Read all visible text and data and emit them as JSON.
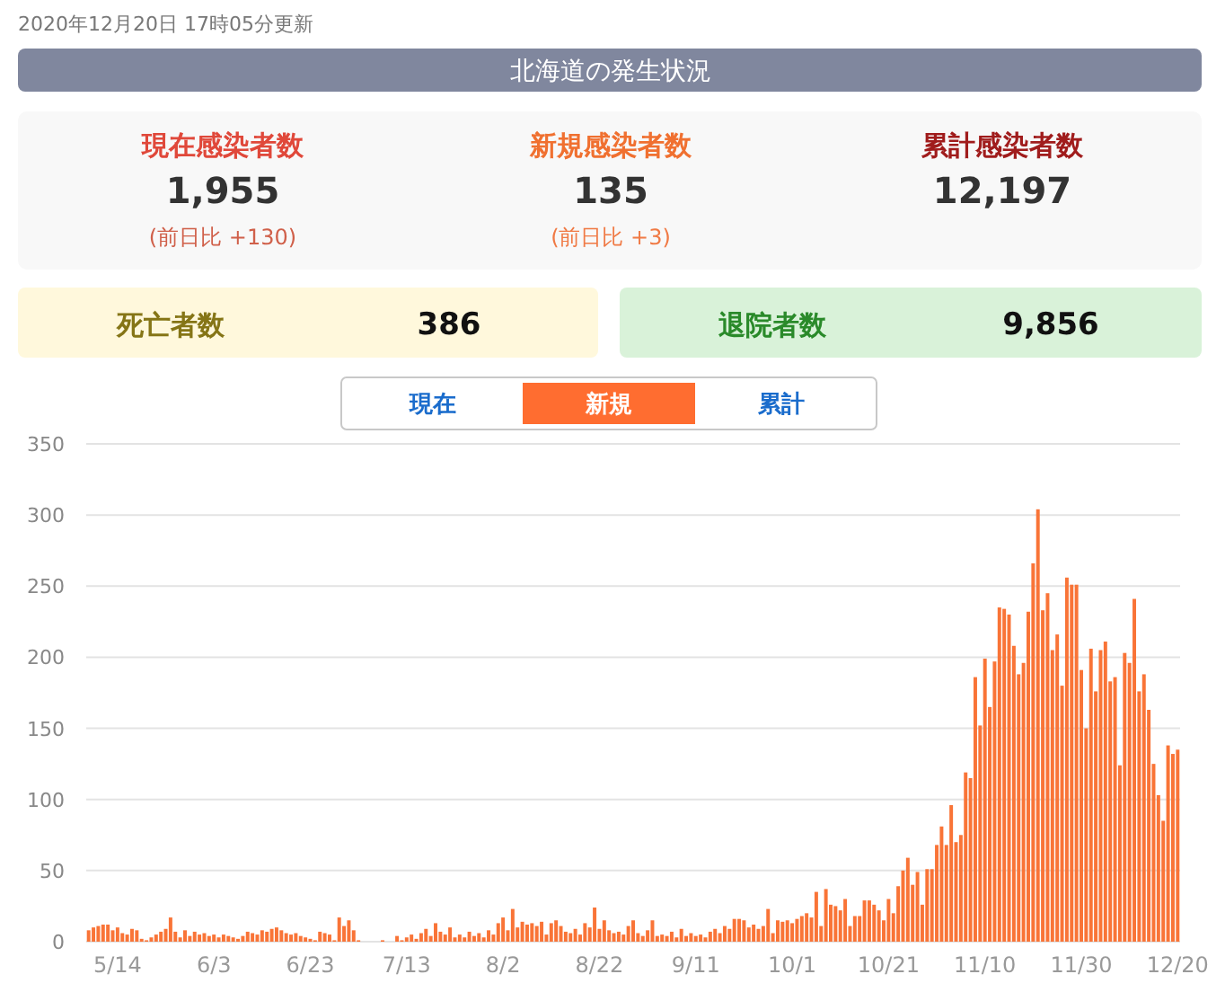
{
  "chart_data": [
    {
      "type": "other",
      "title": "北海道の発生状況",
      "subtitle": "2020年12月20日 17時05分更新",
      "annotations": [
        "現在感染者数",
        "1,955",
        "(前日比 +130)",
        "新規感染者数",
        "135",
        "(前日比 +3)",
        "累計感染者数",
        "12,197",
        "死亡者数",
        "386",
        "退院者数",
        "9,856",
        "現在",
        "新規",
        "累計"
      ]
    },
    {
      "type": "bar",
      "color": "#f97437",
      "ylim": [
        0,
        350
      ],
      "yticks": [
        0,
        50,
        100,
        150,
        200,
        250,
        300,
        350
      ],
      "grid": "y",
      "categories": [
        null,
        null,
        null,
        null,
        null,
        null,
        "5/14",
        null,
        null,
        null,
        null,
        null,
        null,
        null,
        null,
        null,
        null,
        null,
        null,
        null,
        null,
        null,
        null,
        null,
        null,
        null,
        "6/3",
        null,
        null,
        null,
        null,
        null,
        null,
        null,
        null,
        null,
        null,
        null,
        null,
        null,
        null,
        null,
        null,
        null,
        null,
        null,
        "6/23",
        null,
        null,
        null,
        null,
        null,
        null,
        null,
        null,
        null,
        null,
        null,
        null,
        null,
        null,
        null,
        null,
        null,
        null,
        null,
        "7/13",
        null,
        null,
        null,
        null,
        null,
        null,
        null,
        null,
        null,
        null,
        null,
        null,
        null,
        null,
        null,
        null,
        null,
        null,
        null,
        "8/2",
        null,
        null,
        null,
        null,
        null,
        null,
        null,
        null,
        null,
        null,
        null,
        null,
        null,
        null,
        null,
        null,
        null,
        null,
        null,
        "8/22",
        null,
        null,
        null,
        null,
        null,
        null,
        null,
        null,
        null,
        null,
        null,
        null,
        null,
        null,
        null,
        null,
        null,
        null,
        null,
        "9/11",
        null,
        null,
        null,
        null,
        null,
        null,
        null,
        null,
        null,
        null,
        null,
        null,
        null,
        null,
        null,
        null,
        null,
        null,
        null,
        "10/1",
        null,
        null,
        null,
        null,
        null,
        null,
        null,
        null,
        null,
        null,
        null,
        null,
        null,
        null,
        null,
        null,
        null,
        null,
        null,
        "10/21",
        null,
        null,
        null,
        null,
        null,
        null,
        null,
        null,
        null,
        null,
        null,
        null,
        null,
        null,
        null,
        null,
        null,
        null,
        null,
        "11/10",
        null,
        null,
        null,
        null,
        null,
        null,
        null,
        null,
        null,
        null,
        null,
        null,
        null,
        null,
        null,
        null,
        null,
        null,
        null,
        "11/30",
        null,
        null,
        null,
        null,
        null,
        null,
        null,
        null,
        null,
        null,
        null,
        null,
        null,
        null,
        null,
        null,
        null,
        null,
        null,
        "12/20"
      ],
      "values": [
        8,
        10,
        11,
        12,
        12,
        8,
        10,
        6,
        5,
        9,
        8,
        2,
        1,
        3,
        5,
        7,
        9,
        17,
        7,
        3,
        8,
        4,
        7,
        5,
        6,
        4,
        5,
        3,
        5,
        4,
        3,
        2,
        4,
        7,
        6,
        5,
        8,
        7,
        9,
        10,
        8,
        6,
        5,
        6,
        4,
        3,
        2,
        1,
        7,
        6,
        5,
        1,
        17,
        11,
        15,
        8,
        1,
        0,
        0,
        0,
        0,
        1,
        0,
        0,
        4,
        1,
        3,
        5,
        2,
        6,
        9,
        4,
        13,
        7,
        5,
        10,
        3,
        5,
        3,
        7,
        4,
        6,
        3,
        8,
        5,
        13,
        17,
        8,
        23,
        10,
        14,
        12,
        13,
        11,
        14,
        5,
        13,
        15,
        11,
        7,
        6,
        9,
        5,
        13,
        10,
        24,
        9,
        15,
        8,
        6,
        7,
        5,
        11,
        15,
        6,
        4,
        8,
        15,
        4,
        5,
        4,
        7,
        3,
        9,
        4,
        6,
        4,
        5,
        3,
        7,
        9,
        6,
        11,
        9,
        16,
        16,
        15,
        10,
        12,
        9,
        11,
        23,
        6,
        15,
        14,
        15,
        13,
        16,
        18,
        20,
        17,
        35,
        11,
        37,
        26,
        25,
        22,
        30,
        11,
        18,
        18,
        29,
        29,
        26,
        22,
        15,
        30,
        20,
        39,
        50,
        59,
        40,
        49,
        26,
        51,
        51,
        68,
        81,
        68,
        96,
        70,
        75,
        119,
        115,
        186,
        152,
        199,
        165,
        197,
        235,
        234,
        230,
        208,
        188,
        196,
        232,
        266,
        304,
        233,
        245,
        205,
        216,
        180,
        256,
        251,
        251,
        191,
        150,
        206,
        176,
        205,
        211,
        183,
        186,
        124,
        203,
        196,
        241,
        176,
        188,
        163,
        125,
        103,
        85,
        138,
        132,
        135
      ]
    }
  ]
}
